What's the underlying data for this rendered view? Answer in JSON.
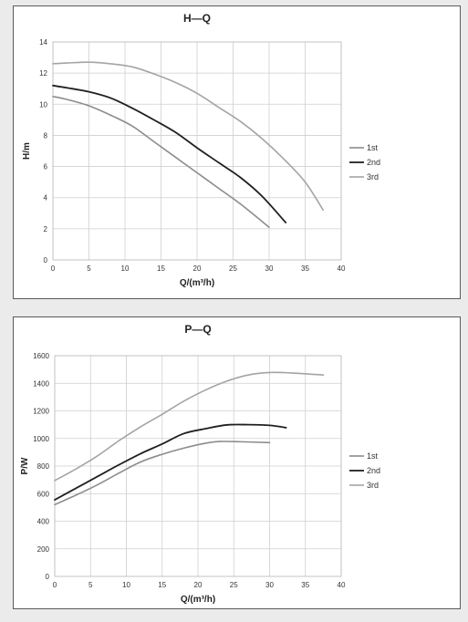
{
  "chart_data": [
    {
      "type": "line",
      "title": "H—Q",
      "xlabel": "Q/(m³/h)",
      "ylabel": "H/m",
      "xlim": [
        0,
        40
      ],
      "ylim": [
        0,
        14
      ],
      "xticks": [
        0,
        5,
        10,
        15,
        20,
        25,
        30,
        35,
        40
      ],
      "yticks": [
        0,
        2,
        4,
        6,
        8,
        10,
        12,
        14
      ],
      "grid": true,
      "legend": "right",
      "series": [
        {
          "name": "1st",
          "color": "#8c8c8c",
          "x": [
            0,
            2,
            5,
            8,
            11,
            14,
            17,
            20,
            23,
            26,
            30
          ],
          "y": [
            10.5,
            10.3,
            9.9,
            9.3,
            8.6,
            7.6,
            6.6,
            5.6,
            4.6,
            3.6,
            2.1
          ]
        },
        {
          "name": "2nd",
          "color": "#202020",
          "x": [
            0,
            2,
            5,
            8,
            11,
            14,
            17,
            20,
            23,
            26,
            29,
            32.3
          ],
          "y": [
            11.2,
            11.05,
            10.8,
            10.4,
            9.75,
            9.0,
            8.2,
            7.2,
            6.25,
            5.3,
            4.1,
            2.4
          ]
        },
        {
          "name": "3rd",
          "color": "#a4a4a4",
          "x": [
            0,
            2,
            5,
            8,
            11,
            14,
            17,
            20,
            23,
            26,
            29,
            32,
            35,
            37.5
          ],
          "y": [
            12.6,
            12.65,
            12.7,
            12.6,
            12.4,
            11.95,
            11.4,
            10.7,
            9.8,
            8.9,
            7.8,
            6.5,
            5.0,
            3.2
          ]
        }
      ]
    },
    {
      "type": "line",
      "title": "P—Q",
      "xlabel": "Q/(m³/h)",
      "ylabel": "P/W",
      "xlim": [
        0,
        40
      ],
      "ylim": [
        0,
        1600
      ],
      "xticks": [
        0,
        5,
        10,
        15,
        20,
        25,
        30,
        35,
        40
      ],
      "yticks": [
        0,
        200,
        400,
        600,
        800,
        1000,
        1200,
        1400,
        1600
      ],
      "grid": true,
      "legend": "right",
      "series": [
        {
          "name": "1st",
          "color": "#8c8c8c",
          "x": [
            0,
            3,
            6,
            9,
            12,
            15,
            18,
            21,
            23,
            26,
            30
          ],
          "y": [
            520,
            590,
            665,
            750,
            830,
            885,
            930,
            965,
            978,
            976,
            970
          ]
        },
        {
          "name": "2nd",
          "color": "#202020",
          "x": [
            0,
            3,
            6,
            9,
            12,
            15,
            18,
            21,
            24,
            27,
            30,
            32.3
          ],
          "y": [
            555,
            640,
            725,
            810,
            890,
            960,
            1035,
            1070,
            1098,
            1100,
            1095,
            1078
          ]
        },
        {
          "name": "3rd",
          "color": "#a4a4a4",
          "x": [
            0,
            3,
            6,
            9,
            12,
            15,
            18,
            21,
            24,
            27,
            30,
            33,
            37.5
          ],
          "y": [
            695,
            780,
            875,
            985,
            1085,
            1175,
            1270,
            1350,
            1415,
            1460,
            1478,
            1475,
            1460
          ]
        }
      ]
    }
  ]
}
